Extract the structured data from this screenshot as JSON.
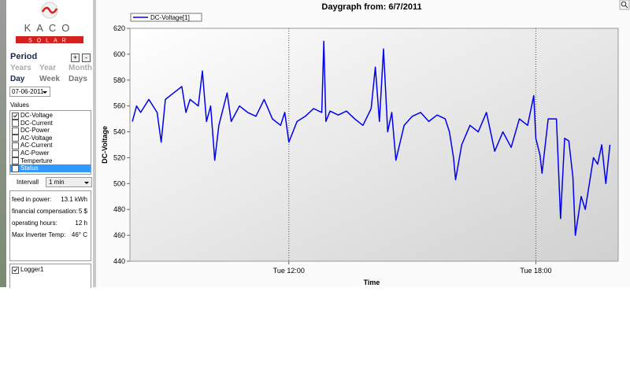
{
  "sidebar": {
    "logo": {
      "name": "KACO",
      "sub": "SOLAR"
    },
    "period": {
      "title": "Period",
      "plus": "+",
      "minus": "-",
      "options": [
        "Years",
        "Year",
        "Month",
        "Day",
        "Week",
        "Days"
      ],
      "active": 3,
      "date": "07-06-2011"
    },
    "values": {
      "title": "Values",
      "items": [
        {
          "label": "DC-Voltage",
          "checked": true
        },
        {
          "label": "DC-Current",
          "checked": false
        },
        {
          "label": "DC-Power",
          "checked": false
        },
        {
          "label": "AC-Voltage",
          "checked": false
        },
        {
          "label": "AC-Current",
          "checked": false
        },
        {
          "label": "AC-Power",
          "checked": false
        },
        {
          "label": "Temperture",
          "checked": false
        },
        {
          "label": "Status",
          "checked": false
        }
      ],
      "selected": 7
    },
    "interval": {
      "label": "Intervall",
      "value": "1 min"
    },
    "stats": [
      {
        "label": "feed in power:",
        "value": "13.1 kWh"
      },
      {
        "label": "financial compensation:",
        "value": "5 $"
      },
      {
        "label": "operating hours:",
        "value": "12 h"
      },
      {
        "label": "Max Inverter Temp:",
        "value": "46° C"
      }
    ],
    "loggers": [
      {
        "label": "Logger1",
        "checked": true
      }
    ]
  },
  "chart_data": {
    "type": "line",
    "title": "Daygraph from: 6/7/2011",
    "x_label": "Time",
    "y_label": "DC-Voltage",
    "x": [
      8.2,
      8.3,
      8.4,
      8.6,
      8.8,
      8.9,
      9.0,
      9.2,
      9.4,
      9.5,
      9.6,
      9.8,
      9.9,
      10.0,
      10.1,
      10.2,
      10.3,
      10.5,
      10.6,
      10.8,
      11.0,
      11.2,
      11.4,
      11.6,
      11.8,
      11.9,
      12.0,
      12.2,
      12.4,
      12.6,
      12.8,
      12.85,
      12.9,
      13.0,
      13.2,
      13.4,
      13.6,
      13.8,
      14.0,
      14.1,
      14.2,
      14.3,
      14.4,
      14.5,
      14.6,
      14.8,
      15.0,
      15.2,
      15.4,
      15.6,
      15.8,
      15.9,
      16.0,
      16.05,
      16.2,
      16.4,
      16.6,
      16.8,
      17.0,
      17.2,
      17.4,
      17.6,
      17.8,
      17.95,
      18.0,
      18.1,
      18.15,
      18.3,
      18.5,
      18.6,
      18.7,
      18.8,
      18.9,
      18.96,
      19.1,
      19.2,
      19.4,
      19.5,
      19.6,
      19.7,
      19.8
    ],
    "series": [
      {
        "name": "DC-Voltage[1]",
        "color": "#0000ee",
        "values": [
          548,
          560,
          555,
          565,
          555,
          532,
          565,
          570,
          575,
          555,
          565,
          560,
          587,
          548,
          560,
          518,
          545,
          570,
          548,
          560,
          555,
          552,
          565,
          550,
          545,
          555,
          532,
          548,
          552,
          558,
          555,
          610,
          548,
          556,
          553,
          556,
          550,
          545,
          558,
          590,
          548,
          604,
          540,
          555,
          518,
          545,
          552,
          555,
          548,
          553,
          550,
          540,
          520,
          503,
          530,
          545,
          540,
          555,
          525,
          540,
          528,
          550,
          545,
          568,
          535,
          522,
          508,
          550,
          550,
          473,
          535,
          533,
          505,
          460,
          490,
          480,
          520,
          515,
          530,
          500,
          530
        ]
      }
    ],
    "xlim": [
      8.14,
      20
    ],
    "xticks": [
      {
        "value": 12,
        "label": "Tue 12:00"
      },
      {
        "value": 18,
        "label": "Tue 18:00"
      }
    ],
    "xgrid": true,
    "ylim": [
      440,
      620
    ],
    "yticks": [
      440,
      460,
      480,
      500,
      520,
      540,
      560,
      580,
      600,
      620
    ]
  }
}
